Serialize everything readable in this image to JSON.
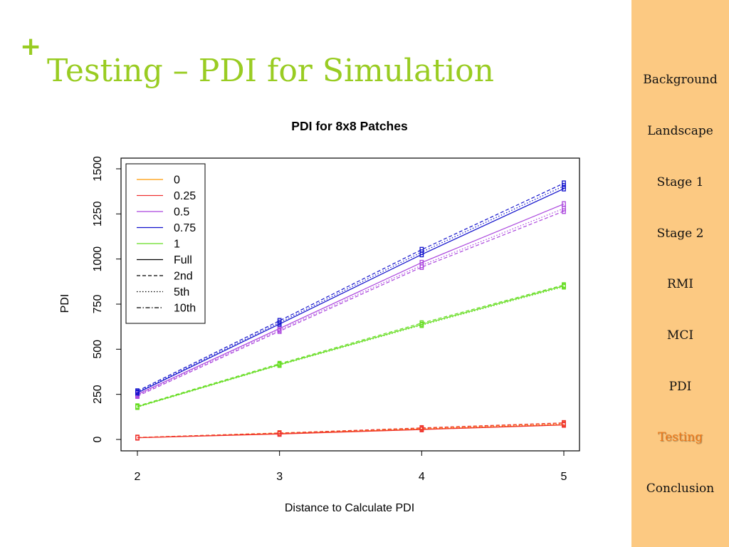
{
  "slide": {
    "plus_symbol": "+",
    "title": "Testing – PDI for Simulation",
    "accent_color": "#99cc22"
  },
  "sidebar": {
    "background": "#fcc982",
    "active_color": "#f07a1a",
    "items": [
      {
        "label": "Background",
        "active": false
      },
      {
        "label": "Landscape",
        "active": false
      },
      {
        "label": "Stage 1",
        "active": false
      },
      {
        "label": "Stage 2",
        "active": false
      },
      {
        "label": "RMI",
        "active": false
      },
      {
        "label": "MCI",
        "active": false
      },
      {
        "label": "PDI",
        "active": false
      },
      {
        "label": "Testing",
        "active": true
      },
      {
        "label": "Conclusion",
        "active": false
      }
    ]
  },
  "chart_data": {
    "type": "line",
    "title": "PDI for 8x8 Patches",
    "xlabel": "Distance to Calculate PDI",
    "ylabel": "PDI",
    "x": [
      2,
      3,
      4,
      5
    ],
    "xlim": [
      2,
      5
    ],
    "ylim": [
      0,
      1500
    ],
    "y_ticks": [
      0,
      250,
      500,
      750,
      1000,
      1250,
      1500
    ],
    "grid": false,
    "legend_position": "top-left",
    "legend_entries": [
      {
        "label": "0",
        "color": "#ff9900",
        "dash": "solid"
      },
      {
        "label": "0.25",
        "color": "#ee3333",
        "dash": "solid"
      },
      {
        "label": "0.5",
        "color": "#aa44dd",
        "dash": "solid"
      },
      {
        "label": "0.75",
        "color": "#1111cc",
        "dash": "solid"
      },
      {
        "label": "1",
        "color": "#66dd22",
        "dash": "solid"
      },
      {
        "label": "Full",
        "color": "#000000",
        "dash": "solid"
      },
      {
        "label": "2nd",
        "color": "#000000",
        "dash": "dashed"
      },
      {
        "label": "5th",
        "color": "#000000",
        "dash": "dotted"
      },
      {
        "label": "10th",
        "color": "#000000",
        "dash": "dashdot"
      }
    ],
    "series": [
      {
        "color": "#ff9900",
        "dash": "solid",
        "values": [
          10,
          33,
          57,
          82
        ]
      },
      {
        "color": "#ff9900",
        "dash": "dashed",
        "values": [
          11,
          36,
          62,
          90
        ]
      },
      {
        "color": "#ee3333",
        "dash": "solid",
        "values": [
          9,
          30,
          55,
          80
        ]
      },
      {
        "color": "#ee3333",
        "dash": "dashed",
        "values": [
          11,
          35,
          64,
          92
        ]
      },
      {
        "color": "#ee3333",
        "dash": "dotted",
        "values": [
          10,
          32,
          58,
          85
        ]
      },
      {
        "color": "#aa44dd",
        "dash": "solid",
        "values": [
          250,
          615,
          980,
          1305
        ]
      },
      {
        "color": "#aa44dd",
        "dash": "dashed",
        "values": [
          240,
          600,
          955,
          1265
        ]
      },
      {
        "color": "#aa44dd",
        "dash": "dotted",
        "values": [
          245,
          607,
          965,
          1280
        ]
      },
      {
        "color": "#1111cc",
        "dash": "solid",
        "values": [
          258,
          640,
          1025,
          1390
        ]
      },
      {
        "color": "#1111cc",
        "dash": "dashed",
        "values": [
          268,
          658,
          1052,
          1420
        ]
      },
      {
        "color": "#1111cc",
        "dash": "dotted",
        "values": [
          262,
          648,
          1038,
          1405
        ]
      },
      {
        "color": "#66dd22",
        "dash": "solid",
        "values": [
          181,
          415,
          638,
          851
        ]
      },
      {
        "color": "#66dd22",
        "dash": "dashed",
        "values": [
          185,
          420,
          645,
          856
        ]
      },
      {
        "color": "#66dd22",
        "dash": "dotted",
        "values": [
          179,
          412,
          633,
          846
        ]
      }
    ]
  }
}
